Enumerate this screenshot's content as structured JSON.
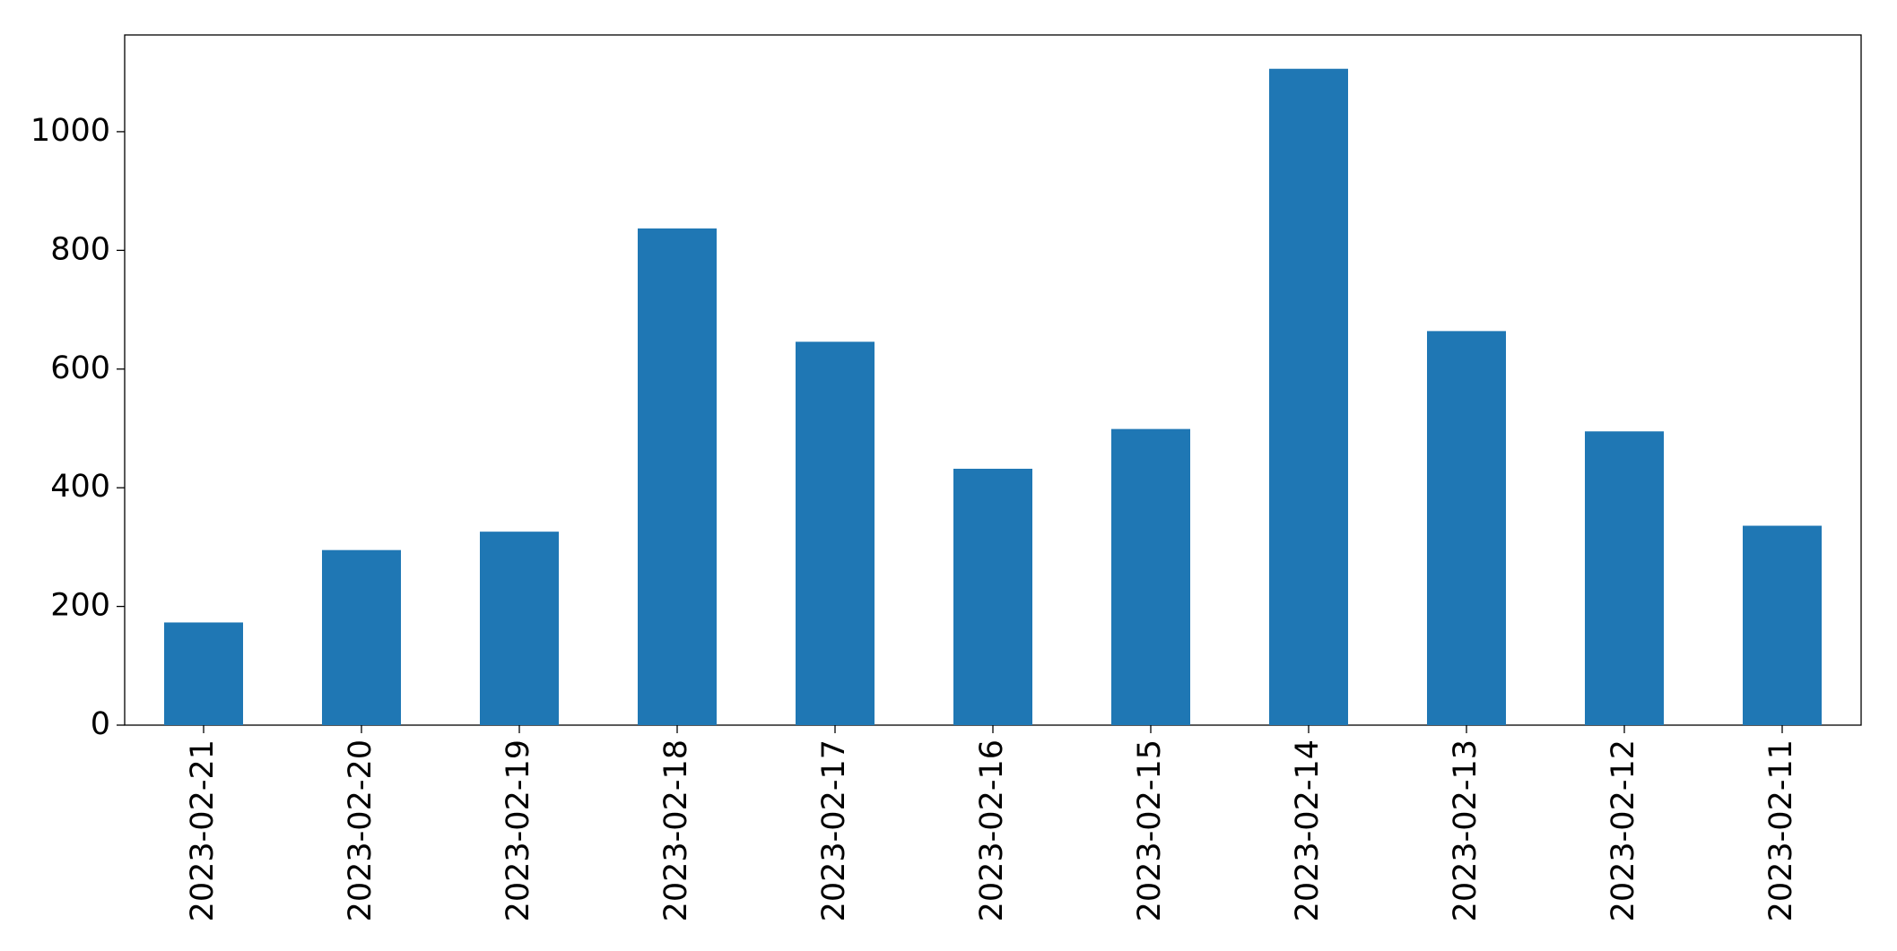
{
  "chart_data": {
    "type": "bar",
    "categories": [
      "2023-02-21",
      "2023-02-20",
      "2023-02-19",
      "2023-02-18",
      "2023-02-17",
      "2023-02-16",
      "2023-02-15",
      "2023-02-14",
      "2023-02-13",
      "2023-02-12",
      "2023-02-11"
    ],
    "values": [
      173,
      295,
      326,
      837,
      646,
      432,
      499,
      1106,
      664,
      495,
      336
    ],
    "color": "#1f77b4",
    "ylim": [
      0,
      1163
    ],
    "yticks": [
      0,
      200,
      400,
      600,
      800,
      1000
    ],
    "grid": false
  }
}
